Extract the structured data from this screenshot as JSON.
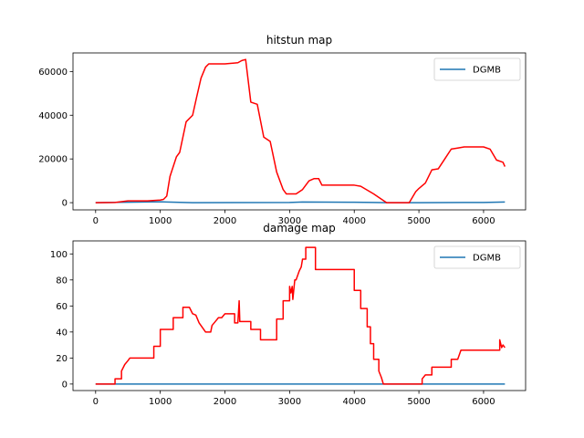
{
  "chart_data": [
    {
      "type": "line",
      "title": "hitstun map",
      "xlabel": "",
      "ylabel": "",
      "xlim": [
        -350,
        6650
      ],
      "ylim": [
        -3300,
        68500
      ],
      "xticks": [
        0,
        1000,
        2000,
        3000,
        4000,
        5000,
        6000
      ],
      "yticks": [
        0,
        20000,
        40000,
        60000
      ],
      "grid": false,
      "legend": {
        "position": "top-right",
        "entries": [
          "DGMB"
        ]
      },
      "series": [
        {
          "name": "DGMB",
          "color": "#1f77b4",
          "points": [
            [
              0,
              0
            ],
            [
              500,
              200
            ],
            [
              1000,
              400
            ],
            [
              1100,
              300
            ],
            [
              1500,
              0
            ],
            [
              3000,
              100
            ],
            [
              3200,
              300
            ],
            [
              4000,
              200
            ],
            [
              4300,
              100
            ],
            [
              4500,
              0
            ],
            [
              5000,
              0
            ],
            [
              6000,
              100
            ],
            [
              6330,
              300
            ]
          ]
        },
        {
          "name": "",
          "color": "#ff0000",
          "points": [
            [
              0,
              0
            ],
            [
              300,
              100
            ],
            [
              500,
              800
            ],
            [
              800,
              800
            ],
            [
              1000,
              1200
            ],
            [
              1050,
              1500
            ],
            [
              1100,
              3000
            ],
            [
              1150,
              12000
            ],
            [
              1250,
              21000
            ],
            [
              1300,
              23000
            ],
            [
              1400,
              37000
            ],
            [
              1500,
              40000
            ],
            [
              1560,
              48000
            ],
            [
              1630,
              57000
            ],
            [
              1700,
              62000
            ],
            [
              1750,
              63500
            ],
            [
              2000,
              63500
            ],
            [
              2200,
              64000
            ],
            [
              2260,
              65000
            ],
            [
              2320,
              65500
            ],
            [
              2400,
              46000
            ],
            [
              2500,
              45000
            ],
            [
              2600,
              30000
            ],
            [
              2700,
              28000
            ],
            [
              2800,
              14000
            ],
            [
              2900,
              6000
            ],
            [
              2950,
              4000
            ],
            [
              3100,
              4000
            ],
            [
              3200,
              6000
            ],
            [
              3300,
              10000
            ],
            [
              3380,
              11000
            ],
            [
              3450,
              11000
            ],
            [
              3500,
              8000
            ],
            [
              4000,
              8000
            ],
            [
              4100,
              7500
            ],
            [
              4300,
              4000
            ],
            [
              4500,
              0
            ],
            [
              4850,
              0
            ],
            [
              4950,
              5000
            ],
            [
              5000,
              6500
            ],
            [
              5100,
              9000
            ],
            [
              5200,
              15000
            ],
            [
              5300,
              15500
            ],
            [
              5400,
              20000
            ],
            [
              5500,
              24500
            ],
            [
              5600,
              25000
            ],
            [
              5700,
              25500
            ],
            [
              6000,
              25500
            ],
            [
              6100,
              24500
            ],
            [
              6200,
              19500
            ],
            [
              6300,
              18500
            ],
            [
              6330,
              16500
            ]
          ]
        }
      ]
    },
    {
      "type": "line",
      "title": "damage map",
      "xlabel": "",
      "ylabel": "",
      "xlim": [
        -350,
        6650
      ],
      "ylim": [
        -5,
        110
      ],
      "xticks": [
        0,
        1000,
        2000,
        3000,
        4000,
        5000,
        6000
      ],
      "yticks": [
        0,
        20,
        40,
        60,
        80,
        100
      ],
      "grid": false,
      "legend": {
        "position": "top-right",
        "entries": [
          "DGMB"
        ]
      },
      "series": [
        {
          "name": "DGMB",
          "color": "#1f77b4",
          "points": [
            [
              0,
              0
            ],
            [
              6330,
              0
            ]
          ]
        },
        {
          "name": "",
          "color": "#ff0000",
          "points": [
            [
              0,
              0
            ],
            [
              300,
              0
            ],
            [
              300,
              4
            ],
            [
              400,
              4
            ],
            [
              400,
              10
            ],
            [
              450,
              15
            ],
            [
              500,
              18
            ],
            [
              530,
              20
            ],
            [
              900,
              20
            ],
            [
              900,
              29
            ],
            [
              1000,
              29
            ],
            [
              1000,
              42
            ],
            [
              1200,
              42
            ],
            [
              1200,
              51
            ],
            [
              1350,
              51
            ],
            [
              1350,
              59
            ],
            [
              1450,
              59
            ],
            [
              1500,
              54
            ],
            [
              1550,
              53
            ],
            [
              1600,
              47
            ],
            [
              1700,
              40
            ],
            [
              1780,
              40
            ],
            [
              1800,
              45
            ],
            [
              1850,
              48
            ],
            [
              1900,
              51
            ],
            [
              1950,
              51
            ],
            [
              2000,
              54
            ],
            [
              2050,
              54
            ],
            [
              2150,
              54
            ],
            [
              2150,
              47
            ],
            [
              2200,
              47
            ],
            [
              2220,
              64
            ],
            [
              2230,
              48
            ],
            [
              2400,
              48
            ],
            [
              2400,
              42
            ],
            [
              2550,
              42
            ],
            [
              2550,
              34
            ],
            [
              2800,
              34
            ],
            [
              2800,
              50
            ],
            [
              2900,
              50
            ],
            [
              2900,
              64
            ],
            [
              3000,
              64
            ],
            [
              3000,
              75
            ],
            [
              3020,
              70
            ],
            [
              3040,
              75
            ],
            [
              3050,
              65
            ],
            [
              3080,
              80
            ],
            [
              3100,
              80
            ],
            [
              3150,
              87
            ],
            [
              3180,
              90
            ],
            [
              3200,
              96
            ],
            [
              3250,
              96
            ],
            [
              3250,
              105
            ],
            [
              3400,
              105
            ],
            [
              3400,
              88
            ],
            [
              3800,
              88
            ],
            [
              4000,
              88
            ],
            [
              4000,
              72
            ],
            [
              4100,
              72
            ],
            [
              4100,
              58
            ],
            [
              4200,
              58
            ],
            [
              4200,
              44
            ],
            [
              4250,
              44
            ],
            [
              4250,
              31
            ],
            [
              4300,
              31
            ],
            [
              4300,
              19
            ],
            [
              4380,
              19
            ],
            [
              4380,
              10
            ],
            [
              4420,
              5
            ],
            [
              4450,
              0
            ],
            [
              5050,
              0
            ],
            [
              5050,
              4
            ],
            [
              5100,
              7
            ],
            [
              5200,
              7
            ],
            [
              5200,
              13
            ],
            [
              5500,
              13
            ],
            [
              5500,
              19
            ],
            [
              5600,
              19
            ],
            [
              5650,
              26
            ],
            [
              6250,
              26
            ],
            [
              6250,
              34
            ],
            [
              6280,
              28
            ],
            [
              6300,
              30
            ],
            [
              6330,
              28
            ]
          ]
        }
      ]
    }
  ]
}
